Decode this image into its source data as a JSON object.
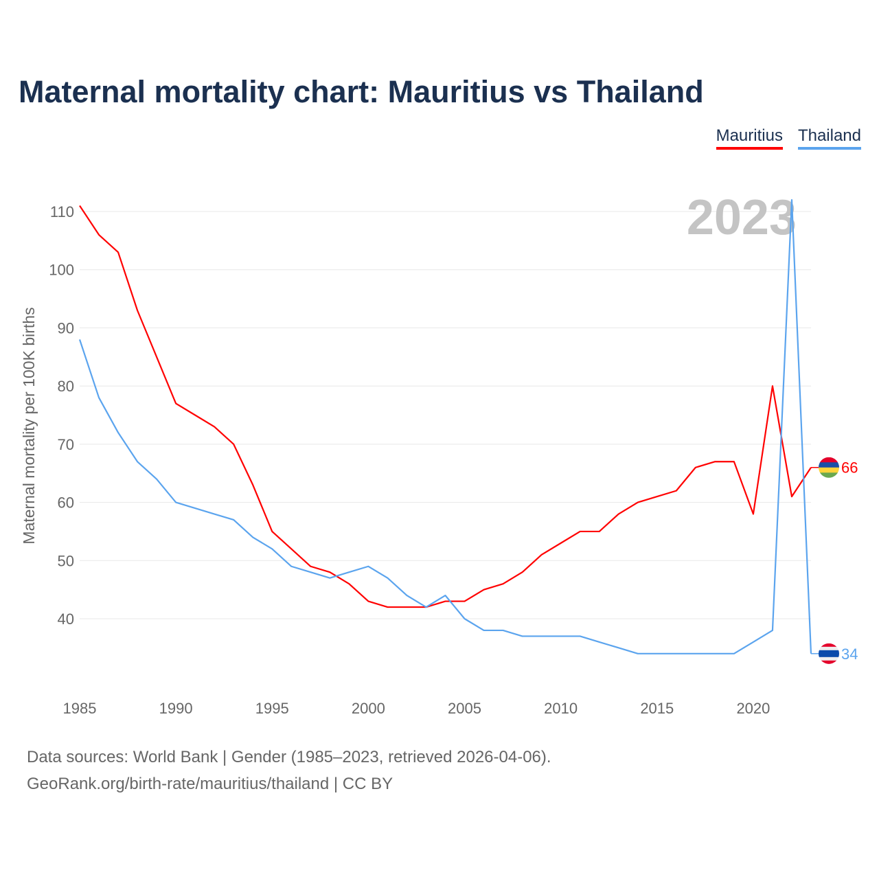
{
  "chart_data": {
    "type": "line",
    "title": "Maternal mortality chart: Mauritius vs Thailand",
    "ylabel": "Maternal mortality per 100K births",
    "xlabel": "",
    "year_label": "2023",
    "x": [
      1985,
      1986,
      1987,
      1988,
      1989,
      1990,
      1991,
      1992,
      1993,
      1994,
      1995,
      1996,
      1997,
      1998,
      1999,
      2000,
      2001,
      2002,
      2003,
      2004,
      2005,
      2006,
      2007,
      2008,
      2009,
      2010,
      2011,
      2012,
      2013,
      2014,
      2015,
      2016,
      2017,
      2018,
      2019,
      2020,
      2021,
      2022,
      2023
    ],
    "series": [
      {
        "name": "Mauritius",
        "color": "#ff0000",
        "end_label": "66",
        "values": [
          111,
          106,
          103,
          93,
          85,
          77,
          75,
          73,
          70,
          63,
          55,
          52,
          49,
          48,
          46,
          43,
          42,
          42,
          42,
          43,
          43,
          45,
          46,
          48,
          51,
          53,
          55,
          55,
          58,
          60,
          61,
          62,
          66,
          67,
          67,
          58,
          80,
          61,
          66
        ]
      },
      {
        "name": "Thailand",
        "color": "#5ba4ee",
        "end_label": "34",
        "values": [
          88,
          78,
          72,
          67,
          64,
          60,
          59,
          58,
          57,
          54,
          52,
          49,
          48,
          47,
          48,
          49,
          47,
          44,
          42,
          44,
          40,
          38,
          38,
          37,
          37,
          37,
          37,
          36,
          35,
          34,
          34,
          34,
          34,
          34,
          34,
          36,
          38,
          112,
          34
        ]
      }
    ],
    "xticks": [
      "1985",
      "1990",
      "1995",
      "2000",
      "2005",
      "2010",
      "2015",
      "2020"
    ],
    "yticks": [
      "40",
      "50",
      "60",
      "70",
      "80",
      "90",
      "100",
      "110"
    ],
    "xlim": [
      1985,
      2023
    ],
    "ylim": [
      30,
      113
    ],
    "grid": true,
    "legend_position": "top-right"
  },
  "footer": {
    "line1": "Data sources: World Bank | Gender (1985–2023, retrieved 2026-04-06).",
    "line2": "GeoRank.org/birth-rate/mauritius/thailand | CC BY"
  }
}
